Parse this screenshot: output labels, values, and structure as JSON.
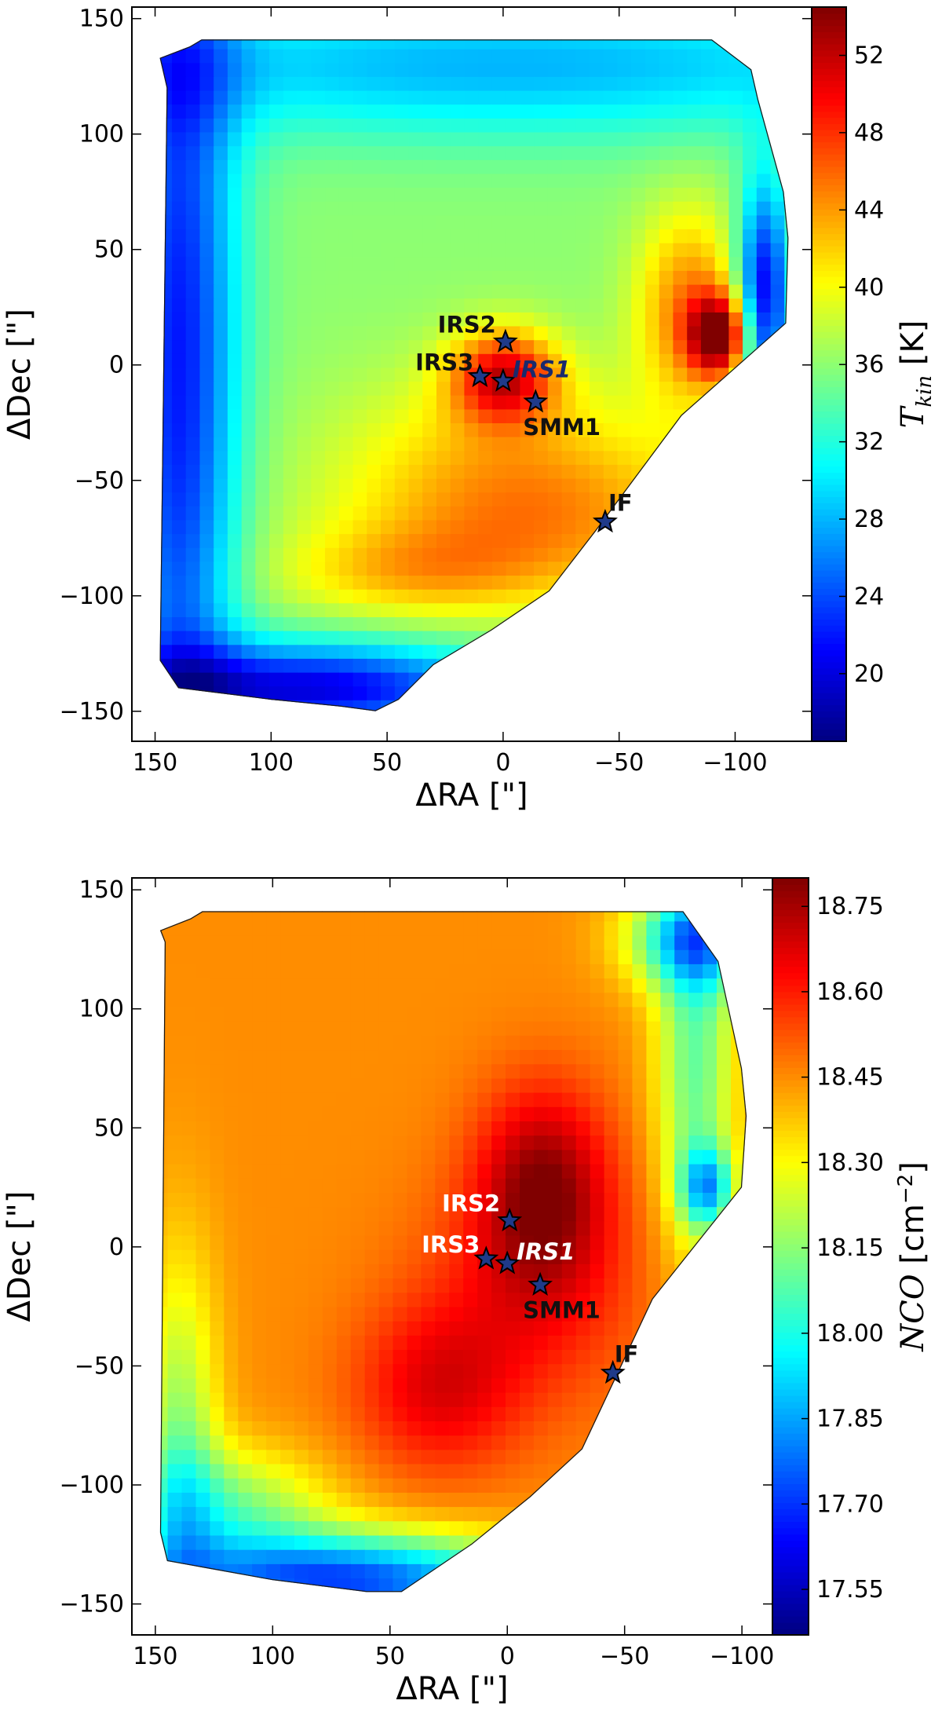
{
  "chart_data": [
    {
      "type": "heatmap",
      "panel": "top",
      "xlabel": "ΔRA [\"]",
      "ylabel": "ΔDec [\"]",
      "xlim": [
        160,
        -133
      ],
      "ylim": [
        -163,
        155
      ],
      "x_ticks": [
        150,
        100,
        50,
        0,
        -50,
        -100
      ],
      "x_tick_labels": [
        "150",
        "100",
        "50",
        "0",
        "−50",
        "−100"
      ],
      "y_ticks": [
        150,
        100,
        50,
        0,
        -50,
        -100,
        -150
      ],
      "y_tick_labels": [
        "150",
        "100",
        "50",
        "0",
        "−50",
        "−100",
        "−150"
      ],
      "colorbar": {
        "label_main": "T",
        "label_sub": "kin",
        "label_unit": " [K]",
        "range": [
          16.5,
          54.5
        ],
        "ticks": [
          20,
          24,
          28,
          32,
          36,
          40,
          44,
          48,
          52
        ],
        "tick_labels": [
          "20",
          "24",
          "28",
          "32",
          "36",
          "40",
          "44",
          "48",
          "52"
        ]
      },
      "colormap": "jet",
      "map_background": 36,
      "map_footprint": [
        [
          145,
          120
        ],
        [
          148,
          133
        ],
        [
          135,
          138
        ],
        [
          130,
          141
        ],
        [
          -90,
          141
        ],
        [
          -107,
          128
        ],
        [
          -110,
          115
        ],
        [
          -121,
          75
        ],
        [
          -123,
          55
        ],
        [
          -122,
          18
        ],
        [
          -77,
          -22
        ],
        [
          -40,
          -72
        ],
        [
          -20,
          -98
        ],
        [
          5,
          -115
        ],
        [
          30,
          -130
        ],
        [
          45,
          -145
        ],
        [
          55,
          -150
        ],
        [
          70,
          -148
        ],
        [
          100,
          -145
        ],
        [
          140,
          -140
        ],
        [
          148,
          -128
        ]
      ],
      "map_components": [
        {
          "x": 140,
          "y": 0,
          "sx": 18,
          "sy": 150,
          "value": -14
        },
        {
          "x": 0,
          "y": 130,
          "sx": 150,
          "sy": 22,
          "value": -8
        },
        {
          "x": 85,
          "y": -140,
          "sx": 60,
          "sy": 14,
          "value": -16
        },
        {
          "x": 0,
          "y": -5,
          "sx": 16,
          "sy": 14,
          "value": 14
        },
        {
          "x": 0,
          "y": -40,
          "sx": 50,
          "sy": 30,
          "value": 5
        },
        {
          "x": -20,
          "y": -70,
          "sx": 60,
          "sy": 25,
          "value": 6
        },
        {
          "x": 40,
          "y": -90,
          "sx": 40,
          "sy": 14,
          "value": 5
        },
        {
          "x": -93,
          "y": 13,
          "sx": 9,
          "sy": 12,
          "value": 17
        },
        {
          "x": -80,
          "y": 25,
          "sx": 16,
          "sy": 30,
          "value": 9
        },
        {
          "x": -112,
          "y": 30,
          "sx": 8,
          "sy": 35,
          "value": -16
        }
      ],
      "sources": [
        {
          "label": "IRS2",
          "x": -1,
          "y": 10,
          "italic": false
        },
        {
          "label": "IRS3",
          "x": 10,
          "y": -5,
          "italic": false
        },
        {
          "label": "IRS1",
          "x": 0,
          "y": -7,
          "italic": true
        },
        {
          "label": "SMM1",
          "x": -14,
          "y": -16,
          "italic": false
        },
        {
          "label": "IF",
          "x": -44,
          "y": -68,
          "italic": false
        }
      ]
    },
    {
      "type": "heatmap",
      "panel": "bottom",
      "xlabel": "ΔRA [\"]",
      "ylabel": "ΔDec [\"]",
      "xlim": [
        160,
        -113
      ],
      "ylim": [
        -163,
        155
      ],
      "x_ticks": [
        150,
        100,
        50,
        0,
        -50,
        -100
      ],
      "x_tick_labels": [
        "150",
        "100",
        "50",
        "0",
        "−50",
        "−100"
      ],
      "y_ticks": [
        150,
        100,
        50,
        0,
        -50,
        -100,
        -150
      ],
      "y_tick_labels": [
        "150",
        "100",
        "50",
        "0",
        "−50",
        "−100",
        "−150"
      ],
      "colorbar": {
        "label_main": "NCO",
        "label_unit": " [cm",
        "label_sup": "−2",
        "label_close": "]",
        "range": [
          17.47,
          18.8
        ],
        "ticks": [
          17.55,
          17.7,
          17.85,
          18.0,
          18.15,
          18.3,
          18.45,
          18.6,
          18.75
        ],
        "tick_labels": [
          "17.55",
          "17.70",
          "17.85",
          "18.00",
          "18.15",
          "18.30",
          "18.45",
          "18.60",
          "18.75"
        ]
      },
      "colormap": "jet",
      "map_background": 18.45,
      "map_footprint": [
        [
          146,
          128
        ],
        [
          148,
          133
        ],
        [
          135,
          138
        ],
        [
          130,
          141
        ],
        [
          -75,
          141
        ],
        [
          -90,
          120
        ],
        [
          -100,
          75
        ],
        [
          -102,
          55
        ],
        [
          -100,
          25
        ],
        [
          -62,
          -22
        ],
        [
          -32,
          -85
        ],
        [
          -10,
          -105
        ],
        [
          15,
          -125
        ],
        [
          45,
          -145
        ],
        [
          60,
          -145
        ],
        [
          100,
          -140
        ],
        [
          145,
          -132
        ],
        [
          148,
          -120
        ]
      ],
      "map_components": [
        {
          "x": -15,
          "y": 25,
          "sx": 20,
          "sy": 30,
          "value": 0.32
        },
        {
          "x": -10,
          "y": -20,
          "sx": 35,
          "sy": 35,
          "value": 0.14
        },
        {
          "x": 30,
          "y": -60,
          "sx": 25,
          "sy": 25,
          "value": 0.2
        },
        {
          "x": 70,
          "y": -140,
          "sx": 60,
          "sy": 14,
          "value": -0.72
        },
        {
          "x": 140,
          "y": -90,
          "sx": 12,
          "sy": 60,
          "value": -0.3
        },
        {
          "x": -80,
          "y": 80,
          "sx": 12,
          "sy": 60,
          "value": -0.35
        },
        {
          "x": -80,
          "y": 130,
          "sx": 20,
          "sy": 15,
          "value": -0.5
        },
        {
          "x": -85,
          "y": 25,
          "sx": 8,
          "sy": 12,
          "value": -0.45
        },
        {
          "x": 120,
          "y": -110,
          "sx": 30,
          "sy": 18,
          "value": -0.3
        }
      ],
      "sources": [
        {
          "label": "IRS2",
          "x": -1,
          "y": 11,
          "italic": false
        },
        {
          "label": "IRS3",
          "x": 9,
          "y": -5,
          "italic": false
        },
        {
          "label": "IRS1",
          "x": 0,
          "y": -7,
          "italic": true
        },
        {
          "label": "SMM1",
          "x": -14,
          "y": -16,
          "italic": false
        },
        {
          "label": "IF",
          "x": -45,
          "y": -53,
          "italic": false
        }
      ]
    }
  ]
}
